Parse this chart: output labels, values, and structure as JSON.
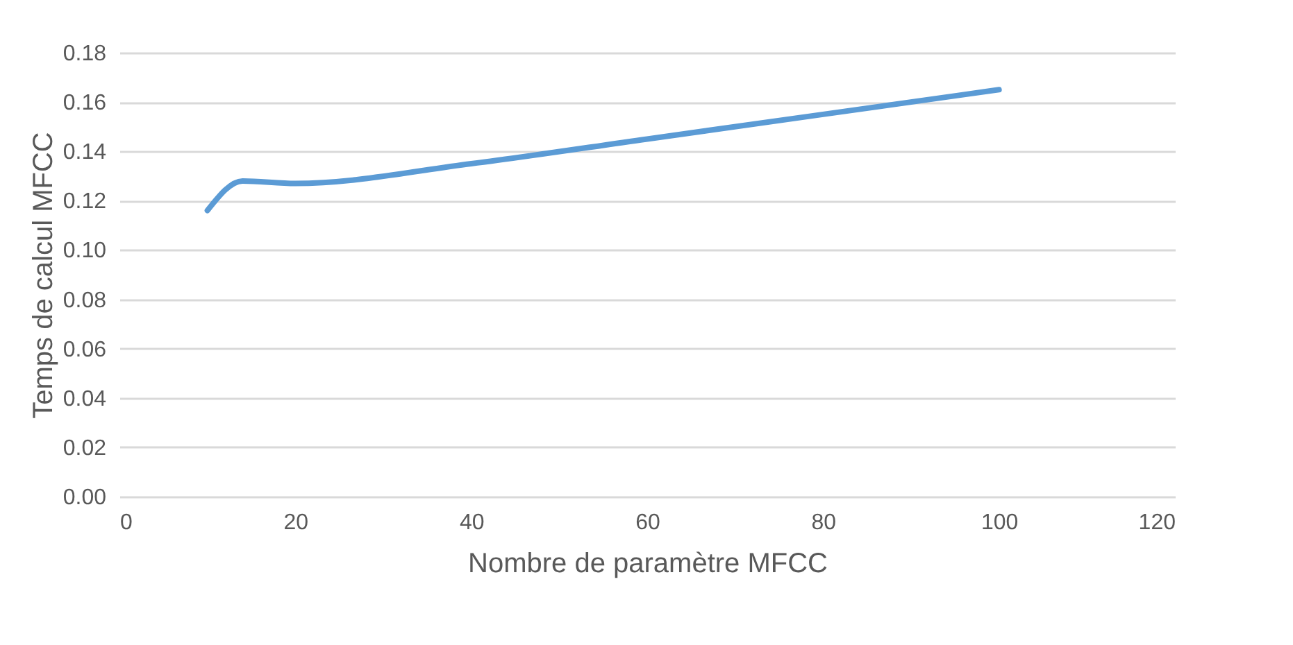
{
  "chart_data": {
    "type": "line",
    "xlabel": "Nombre de paramètre MFCC",
    "ylabel": "Temps de calcul MFCC",
    "x": [
      10,
      14,
      20,
      40,
      60,
      80,
      100
    ],
    "series": [
      {
        "color": "#5b9bd5",
        "values": [
          0.116,
          0.128,
          0.127,
          0.135,
          0.145,
          0.155,
          0.165
        ]
      }
    ],
    "xlim": [
      0,
      120
    ],
    "xticks": [
      0,
      20,
      40,
      60,
      80,
      100,
      120
    ],
    "ylim": [
      0,
      0.18
    ],
    "yticks": [
      {
        "value": 0,
        "label": "0.00"
      },
      {
        "value": 0.02,
        "label": "0.02"
      },
      {
        "value": 0.04,
        "label": "0.04"
      },
      {
        "value": 0.06,
        "label": "0.06"
      },
      {
        "value": 0.08,
        "label": "0.08"
      },
      {
        "value": 0.1,
        "label": "0.10"
      },
      {
        "value": 0.12,
        "label": "0.12"
      },
      {
        "value": 0.14,
        "label": "0.14"
      },
      {
        "value": 0.16,
        "label": "0.16"
      },
      {
        "value": 0.18,
        "label": "0.18"
      }
    ],
    "grid": "y",
    "line_style": "solid",
    "marker": "none"
  }
}
